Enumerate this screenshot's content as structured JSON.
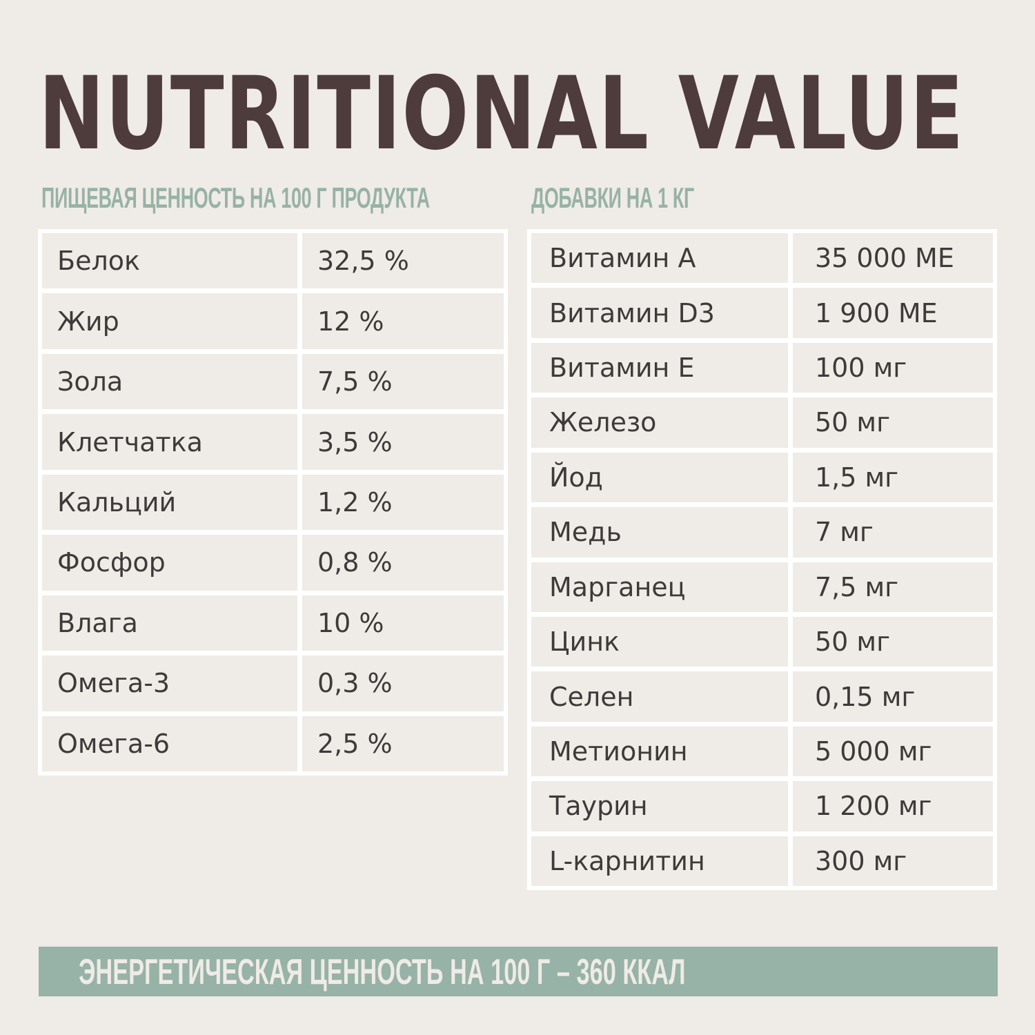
{
  "title": "NUTRITIONAL VALUE",
  "left_table": {
    "heading": "ПИЩЕВАЯ ЦЕННОСТЬ НА 100 Г ПРОДУКТА",
    "rows": [
      {
        "name": "Белок",
        "value": "32,5 %"
      },
      {
        "name": "Жир",
        "value": "12 %"
      },
      {
        "name": "Зола",
        "value": "7,5 %"
      },
      {
        "name": "Клетчатка",
        "value": "3,5 %"
      },
      {
        "name": "Кальций",
        "value": "1,2 %"
      },
      {
        "name": "Фосфор",
        "value": "0,8 %"
      },
      {
        "name": "Влага",
        "value": "10 %"
      },
      {
        "name": "Омега-3",
        "value": "0,3 %"
      },
      {
        "name": "Омега-6",
        "value": "2,5 %"
      }
    ]
  },
  "right_table": {
    "heading": "ДОБАВКИ НА 1 КГ",
    "rows": [
      {
        "name": "Витамин А",
        "value": "35 000 МЕ"
      },
      {
        "name": "Витамин D3",
        "value": "1 900 МЕ"
      },
      {
        "name": "Витамин Е",
        "value": "100 мг"
      },
      {
        "name": "Железо",
        "value": "50 мг"
      },
      {
        "name": "Йод",
        "value": "1,5 мг"
      },
      {
        "name": "Медь",
        "value": "7 мг"
      },
      {
        "name": "Марганец",
        "value": "7,5 мг"
      },
      {
        "name": "Цинк",
        "value": "50 мг"
      },
      {
        "name": "Селен",
        "value": "0,15 мг"
      },
      {
        "name": "Метионин",
        "value": "5 000 мг"
      },
      {
        "name": "Таурин",
        "value": "1 200 мг"
      },
      {
        "name": "L-карнитин",
        "value": "300 мг"
      }
    ]
  },
  "energy": "ЭНЕРГЕТИЧЕСКАЯ ЦЕННОСТЬ НА 100 Г – 360 ККАЛ"
}
